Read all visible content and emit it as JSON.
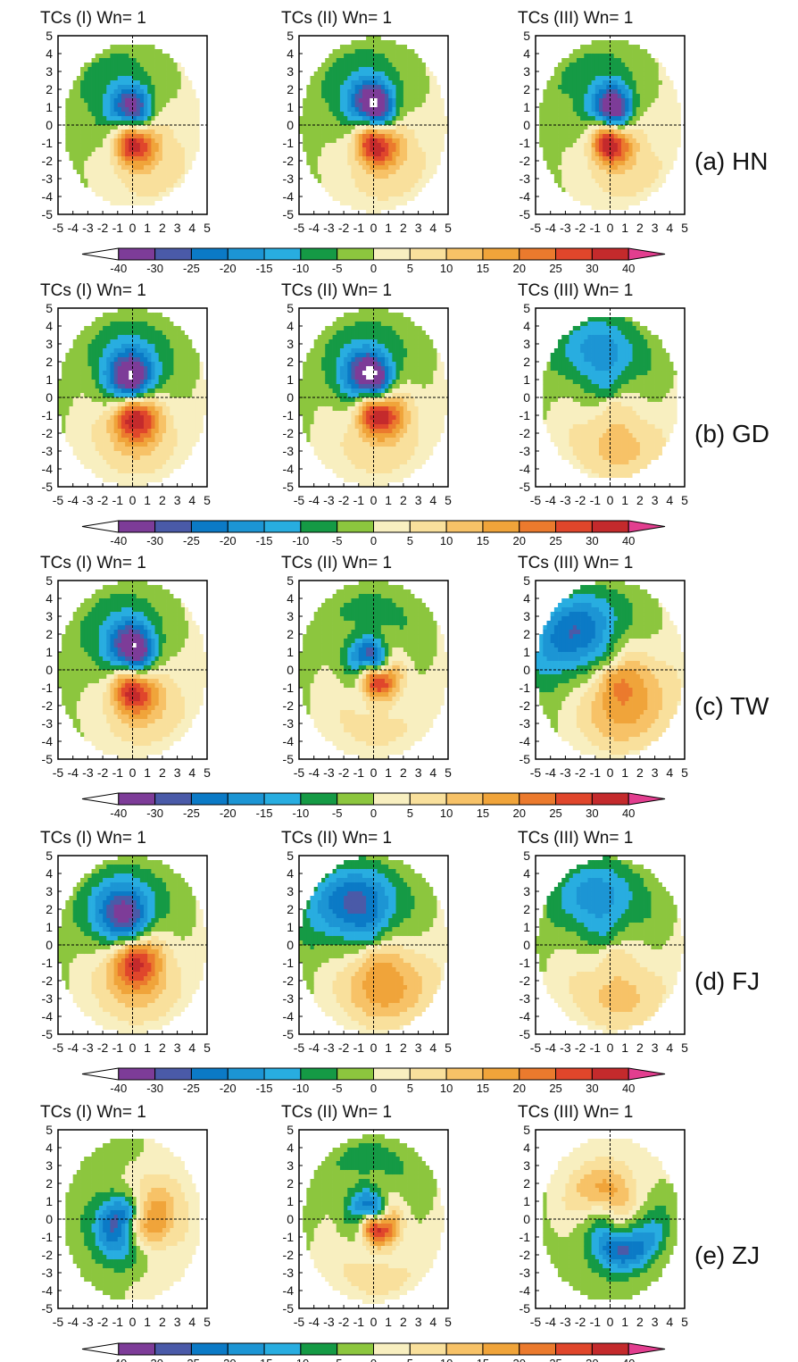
{
  "chart_data": {
    "type": "heatmap",
    "colorbar": {
      "boundaries": [
        -40,
        -30,
        -25,
        -20,
        -15,
        -10,
        -5,
        0,
        5,
        10,
        15,
        20,
        25,
        30,
        40
      ],
      "tick_labels": [
        "-40",
        "-30",
        "-25",
        "-20",
        "-15",
        "-10",
        "-5",
        "0",
        "5",
        "10",
        "15",
        "20",
        "25",
        "30",
        "40"
      ],
      "colors": [
        "#ffffff",
        "#7d3c98",
        "#4a5aa8",
        "#0b7ac6",
        "#1c95d4",
        "#28ade0",
        "#159a45",
        "#8cc63e",
        "#f8efc0",
        "#f9e09c",
        "#f7c267",
        "#f0a43a",
        "#eb7a2d",
        "#e0462b",
        "#c42a2c",
        "#e23e8f"
      ]
    },
    "axes": {
      "xlim": [
        -5,
        5
      ],
      "ylim": [
        -5,
        5
      ],
      "xticks": [
        "-5",
        "-4",
        "-3",
        "-2",
        "-1",
        "0",
        "1",
        "2",
        "3",
        "4",
        "5"
      ],
      "yticks": [
        "5",
        "4",
        "3",
        "2",
        "1",
        "0",
        "-1",
        "-2",
        "-3",
        "-4",
        "-5"
      ],
      "crosshair": "dashed lines at x=0 and y=0"
    },
    "rows": [
      {
        "label": "(a) HN",
        "panels": [
          {
            "title": "TCs (I) Wn= 1",
            "field": {
              "type": "dipole",
              "angle": 135,
              "pos": {
                "x": 0.3,
                "y": 0.8,
                "amp": -36
              },
              "neg": {
                "x": -0.3,
                "y": -0.9,
                "amp": 36
              },
              "sigma": 1.0,
              "spiral": 0.6,
              "outer": 4.6
            }
          },
          {
            "title": "TCs (II) Wn= 1",
            "field": {
              "type": "dipole",
              "angle": 120,
              "pos": {
                "x": 0.5,
                "y": 0.9,
                "amp": -44
              },
              "neg": {
                "x": -0.3,
                "y": -0.9,
                "amp": 36
              },
              "sigma": 1.05,
              "spiral": 0.7,
              "outer": 4.9
            }
          },
          {
            "title": "TCs (III) Wn= 1",
            "field": {
              "type": "dipole",
              "angle": 130,
              "pos": {
                "x": 0.5,
                "y": 0.8,
                "amp": -42
              },
              "neg": {
                "x": -0.3,
                "y": -0.9,
                "amp": 38
              },
              "sigma": 0.95,
              "spiral": 0.5,
              "outer": 4.8
            }
          }
        ]
      },
      {
        "label": "(b) GD",
        "panels": [
          {
            "title": "TCs (I) Wn= 1",
            "field": {
              "type": "dipole",
              "angle": 90,
              "pos": {
                "x": 0.1,
                "y": 1.0,
                "amp": -44
              },
              "neg": {
                "x": 0.0,
                "y": -1.0,
                "amp": 38
              },
              "sigma": 1.15,
              "spiral": 0.3,
              "outer": 5.0
            }
          },
          {
            "title": "TCs (II) Wn= 1",
            "field": {
              "type": "dipole",
              "angle": 100,
              "pos": {
                "x": 0.3,
                "y": 1.1,
                "amp": -44
              },
              "neg": {
                "x": 0.0,
                "y": -0.9,
                "amp": 36
              },
              "sigma": 1.1,
              "spiral": 0.7,
              "outer": 5.0
            }
          },
          {
            "title": "TCs (III) Wn= 1",
            "field": {
              "type": "dipole",
              "angle": 90,
              "pos": {
                "x": 0.0,
                "y": 2.4,
                "amp": -14
              },
              "neg": {
                "x": 0.0,
                "y": -2.3,
                "amp": 8
              },
              "sigma": 1.5,
              "spiral": 0.3,
              "outer": 4.6
            }
          }
        ]
      },
      {
        "label": "(c) TW",
        "panels": [
          {
            "title": "TCs (I) Wn= 1",
            "field": {
              "type": "dipole",
              "angle": 120,
              "pos": {
                "x": 0.5,
                "y": 1.0,
                "amp": -42
              },
              "neg": {
                "x": -0.4,
                "y": -1.0,
                "amp": 34
              },
              "sigma": 1.1,
              "spiral": 0.6,
              "outer": 5.0
            }
          },
          {
            "title": "TCs (II) Wn= 1",
            "field": {
              "type": "dipole",
              "angle": 95,
              "pos": {
                "x": 0.3,
                "y": 0.6,
                "amp": -30
              },
              "neg": {
                "x": -0.1,
                "y": -0.6,
                "amp": 32
              },
              "sigma": 0.85,
              "spiral": 1.6,
              "outer": 5.0
            }
          },
          {
            "title": "TCs (III) Wn= 1",
            "field": {
              "type": "dipole",
              "angle": 110,
              "pos": {
                "x": -1.5,
                "y": 2.6,
                "amp": -22
              },
              "neg": {
                "x": 0.5,
                "y": -1.3,
                "amp": 18
              },
              "sigma": 1.8,
              "spiral": 0.3,
              "outer": 5.0
            }
          }
        ]
      },
      {
        "label": "(d) FJ",
        "panels": [
          {
            "title": "TCs (I) Wn= 1",
            "field": {
              "type": "dipole",
              "angle": 95,
              "pos": {
                "x": -0.2,
                "y": 1.6,
                "amp": -34
              },
              "neg": {
                "x": 0.0,
                "y": -0.9,
                "amp": 32
              },
              "sigma": 1.3,
              "spiral": 0.3,
              "outer": 5.0
            }
          },
          {
            "title": "TCs (II) Wn= 1",
            "field": {
              "type": "dipole",
              "angle": 90,
              "pos": {
                "x": -0.3,
                "y": 2.4,
                "amp": -24
              },
              "neg": {
                "x": 0.0,
                "y": -1.9,
                "amp": 16
              },
              "sigma": 1.7,
              "spiral": 0.4,
              "outer": 5.0
            }
          },
          {
            "title": "TCs (III) Wn= 1",
            "field": {
              "type": "dipole",
              "angle": 90,
              "pos": {
                "x": -0.5,
                "y": 2.6,
                "amp": -14
              },
              "neg": {
                "x": 0.3,
                "y": -2.4,
                "amp": 7
              },
              "sigma": 1.6,
              "spiral": 0.2,
              "outer": 4.9
            }
          }
        ]
      },
      {
        "label": "(e) ZJ",
        "panels": [
          {
            "title": "TCs (I) Wn= 1",
            "field": {
              "type": "dipole",
              "angle": 180,
              "pos": {
                "x": -1.0,
                "y": 0.2,
                "amp": -22
              },
              "neg": {
                "x": 1.0,
                "y": -0.8,
                "amp": 16
              },
              "sigma": 1.15,
              "spiral": 0.9,
              "outer": 4.6
            }
          },
          {
            "title": "TCs (II) Wn= 1",
            "field": {
              "type": "dipole",
              "angle": 100,
              "pos": {
                "x": 0.3,
                "y": 0.5,
                "amp": -26
              },
              "neg": {
                "x": -0.1,
                "y": -0.5,
                "amp": 34
              },
              "sigma": 0.8,
              "spiral": 2.0,
              "outer": 4.7
            }
          },
          {
            "title": "TCs (III) Wn= 1",
            "field": {
              "type": "dipole",
              "angle": 260,
              "pos": {
                "x": -0.8,
                "y": -1.8,
                "amp": -20
              },
              "neg": {
                "x": 0.8,
                "y": 1.2,
                "amp": 10
              },
              "sigma": 1.3,
              "spiral": 1.2,
              "outer": 4.6
            }
          }
        ]
      }
    ]
  }
}
